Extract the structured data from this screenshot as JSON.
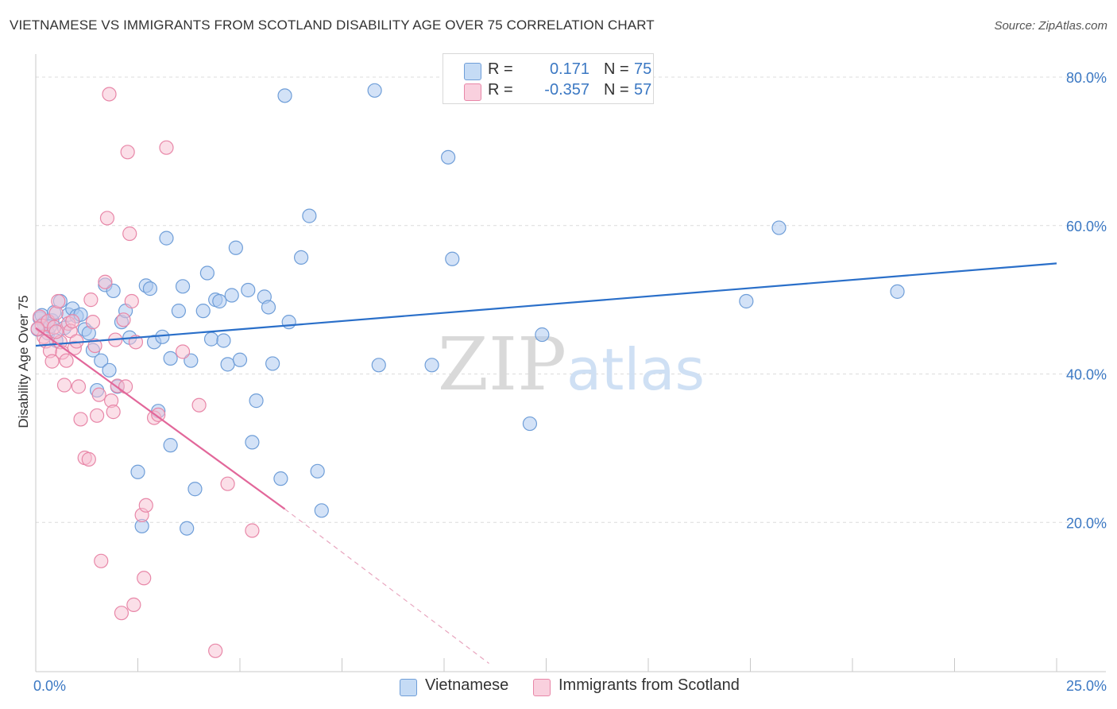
{
  "title": "VIETNAMESE VS IMMIGRANTS FROM SCOTLAND DISABILITY AGE OVER 75 CORRELATION CHART",
  "source": "Source: ZipAtlas.com",
  "watermark": {
    "zip": "ZIP",
    "atlas": "atlas"
  },
  "legend": {
    "vietnamese": {
      "r_label": "R =",
      "r_value": "0.171",
      "n_label": "N =",
      "n_value": "75"
    },
    "scotland": {
      "r_label": "R =",
      "r_value": "-0.357",
      "n_label": "N =",
      "n_value": "57"
    }
  },
  "colors": {
    "blue_fill": "#aecbf0",
    "blue_stroke": "#6f9ed8",
    "blue_line": "#2a6fc9",
    "pink_fill": "#f7c0d1",
    "pink_stroke": "#e887a8",
    "pink_line": "#e2679a",
    "grid": "#dcdcdc",
    "tick_text": "#3b78c3"
  },
  "chart_data": {
    "type": "scatter",
    "title": "VIETNAMESE VS IMMIGRANTS FROM SCOTLAND DISABILITY AGE OVER 75 CORRELATION CHART",
    "xlabel": "",
    "ylabel": "Disability Age Over 75",
    "xlim": [
      0,
      25
    ],
    "ylim": [
      0,
      80
    ],
    "x_tick_labels": [
      "0.0%",
      "25.0%"
    ],
    "y_ticks": [
      20,
      40,
      60,
      80
    ],
    "y_tick_labels": [
      "20.0%",
      "40.0%",
      "60.0%",
      "80.0%"
    ],
    "grid": true,
    "series": [
      {
        "name": "Vietnamese",
        "color": "#aecbf0",
        "trend": {
          "x": [
            0,
            25
          ],
          "y": [
            43.8,
            54.9
          ]
        },
        "points": [
          [
            0.1,
            47.5
          ],
          [
            0.2,
            46.8
          ],
          [
            0.3,
            45.5
          ],
          [
            0.4,
            47.2
          ],
          [
            0.5,
            44.5
          ],
          [
            0.6,
            49.8
          ],
          [
            0.7,
            46.2
          ],
          [
            0.8,
            48.0
          ],
          [
            0.9,
            48.8
          ],
          [
            1.0,
            47.8
          ],
          [
            1.1,
            48.0
          ],
          [
            1.2,
            46.0
          ],
          [
            1.3,
            45.5
          ],
          [
            1.4,
            43.2
          ],
          [
            1.5,
            37.8
          ],
          [
            1.6,
            41.8
          ],
          [
            1.7,
            52.0
          ],
          [
            1.8,
            40.5
          ],
          [
            1.9,
            51.2
          ],
          [
            2.0,
            38.3
          ],
          [
            2.1,
            47.0
          ],
          [
            2.2,
            48.5
          ],
          [
            2.3,
            44.9
          ],
          [
            2.5,
            26.8
          ],
          [
            2.6,
            19.5
          ],
          [
            2.7,
            51.9
          ],
          [
            2.8,
            51.5
          ],
          [
            2.9,
            44.3
          ],
          [
            3.0,
            35.0
          ],
          [
            3.1,
            45.0
          ],
          [
            3.2,
            58.3
          ],
          [
            3.3,
            42.1
          ],
          [
            3.3,
            30.4
          ],
          [
            3.5,
            48.5
          ],
          [
            3.6,
            51.8
          ],
          [
            3.7,
            19.2
          ],
          [
            3.8,
            41.8
          ],
          [
            3.9,
            24.5
          ],
          [
            4.1,
            48.5
          ],
          [
            4.2,
            53.6
          ],
          [
            4.3,
            44.7
          ],
          [
            4.4,
            50.0
          ],
          [
            4.5,
            49.8
          ],
          [
            4.6,
            44.5
          ],
          [
            4.7,
            41.3
          ],
          [
            4.8,
            50.6
          ],
          [
            4.9,
            57.0
          ],
          [
            5.0,
            41.9
          ],
          [
            5.2,
            51.3
          ],
          [
            5.3,
            30.8
          ],
          [
            5.4,
            36.4
          ],
          [
            5.6,
            50.4
          ],
          [
            5.7,
            49.0
          ],
          [
            5.8,
            41.4
          ],
          [
            6.0,
            25.9
          ],
          [
            6.1,
            77.5
          ],
          [
            6.2,
            47.0
          ],
          [
            6.5,
            55.7
          ],
          [
            6.7,
            61.3
          ],
          [
            6.9,
            26.9
          ],
          [
            7.0,
            21.6
          ],
          [
            8.3,
            78.2
          ],
          [
            8.4,
            41.2
          ],
          [
            9.7,
            41.2
          ],
          [
            10.1,
            69.2
          ],
          [
            10.2,
            55.5
          ],
          [
            12.1,
            33.3
          ],
          [
            12.4,
            45.3
          ],
          [
            17.4,
            49.8
          ],
          [
            18.2,
            59.7
          ],
          [
            21.1,
            51.1
          ],
          [
            0.05,
            46.0
          ],
          [
            0.15,
            47.9
          ],
          [
            0.35,
            46.4
          ],
          [
            0.45,
            48.3
          ]
        ]
      },
      {
        "name": "Immigrants from Scotland",
        "color": "#f7c0d1",
        "trend": {
          "x": [
            0,
            6.1
          ],
          "y": [
            46.2,
            21.8
          ]
        },
        "trend_ext": {
          "x": [
            6.1,
            11.1
          ],
          "y": [
            21.8,
            1.0
          ]
        },
        "points": [
          [
            0.1,
            47.7
          ],
          [
            0.15,
            46.5
          ],
          [
            0.2,
            45.0
          ],
          [
            0.25,
            44.4
          ],
          [
            0.3,
            47.1
          ],
          [
            0.35,
            43.1
          ],
          [
            0.4,
            41.7
          ],
          [
            0.45,
            46.3
          ],
          [
            0.5,
            48.2
          ],
          [
            0.55,
            49.8
          ],
          [
            0.6,
            44.3
          ],
          [
            0.65,
            42.9
          ],
          [
            0.7,
            38.5
          ],
          [
            0.75,
            41.8
          ],
          [
            0.8,
            46.8
          ],
          [
            0.85,
            45.8
          ],
          [
            0.9,
            47.1
          ],
          [
            0.95,
            43.5
          ],
          [
            1.0,
            44.4
          ],
          [
            1.05,
            38.3
          ],
          [
            1.1,
            33.9
          ],
          [
            1.2,
            28.7
          ],
          [
            1.3,
            28.5
          ],
          [
            1.35,
            50.0
          ],
          [
            1.4,
            47.0
          ],
          [
            1.45,
            43.8
          ],
          [
            1.5,
            34.4
          ],
          [
            1.55,
            37.2
          ],
          [
            1.6,
            14.8
          ],
          [
            1.7,
            52.4
          ],
          [
            1.75,
            61.0
          ],
          [
            1.8,
            77.7
          ],
          [
            1.85,
            36.4
          ],
          [
            1.9,
            34.9
          ],
          [
            1.95,
            44.6
          ],
          [
            2.0,
            38.4
          ],
          [
            2.1,
            7.8
          ],
          [
            2.15,
            47.3
          ],
          [
            2.2,
            38.3
          ],
          [
            2.25,
            69.9
          ],
          [
            2.3,
            58.9
          ],
          [
            2.35,
            49.8
          ],
          [
            2.4,
            8.9
          ],
          [
            2.45,
            44.3
          ],
          [
            2.6,
            21.0
          ],
          [
            2.65,
            12.5
          ],
          [
            2.7,
            22.3
          ],
          [
            2.9,
            34.1
          ],
          [
            3.0,
            34.5
          ],
          [
            3.2,
            70.5
          ],
          [
            3.6,
            43.0
          ],
          [
            4.0,
            35.8
          ],
          [
            4.4,
            2.7
          ],
          [
            4.7,
            25.2
          ],
          [
            5.3,
            18.9
          ],
          [
            0.05,
            46.1
          ],
          [
            0.5,
            45.7
          ]
        ]
      }
    ]
  },
  "bottom_legend": {
    "vietnamese": "Vietnamese",
    "scotland": "Immigrants from Scotland"
  }
}
